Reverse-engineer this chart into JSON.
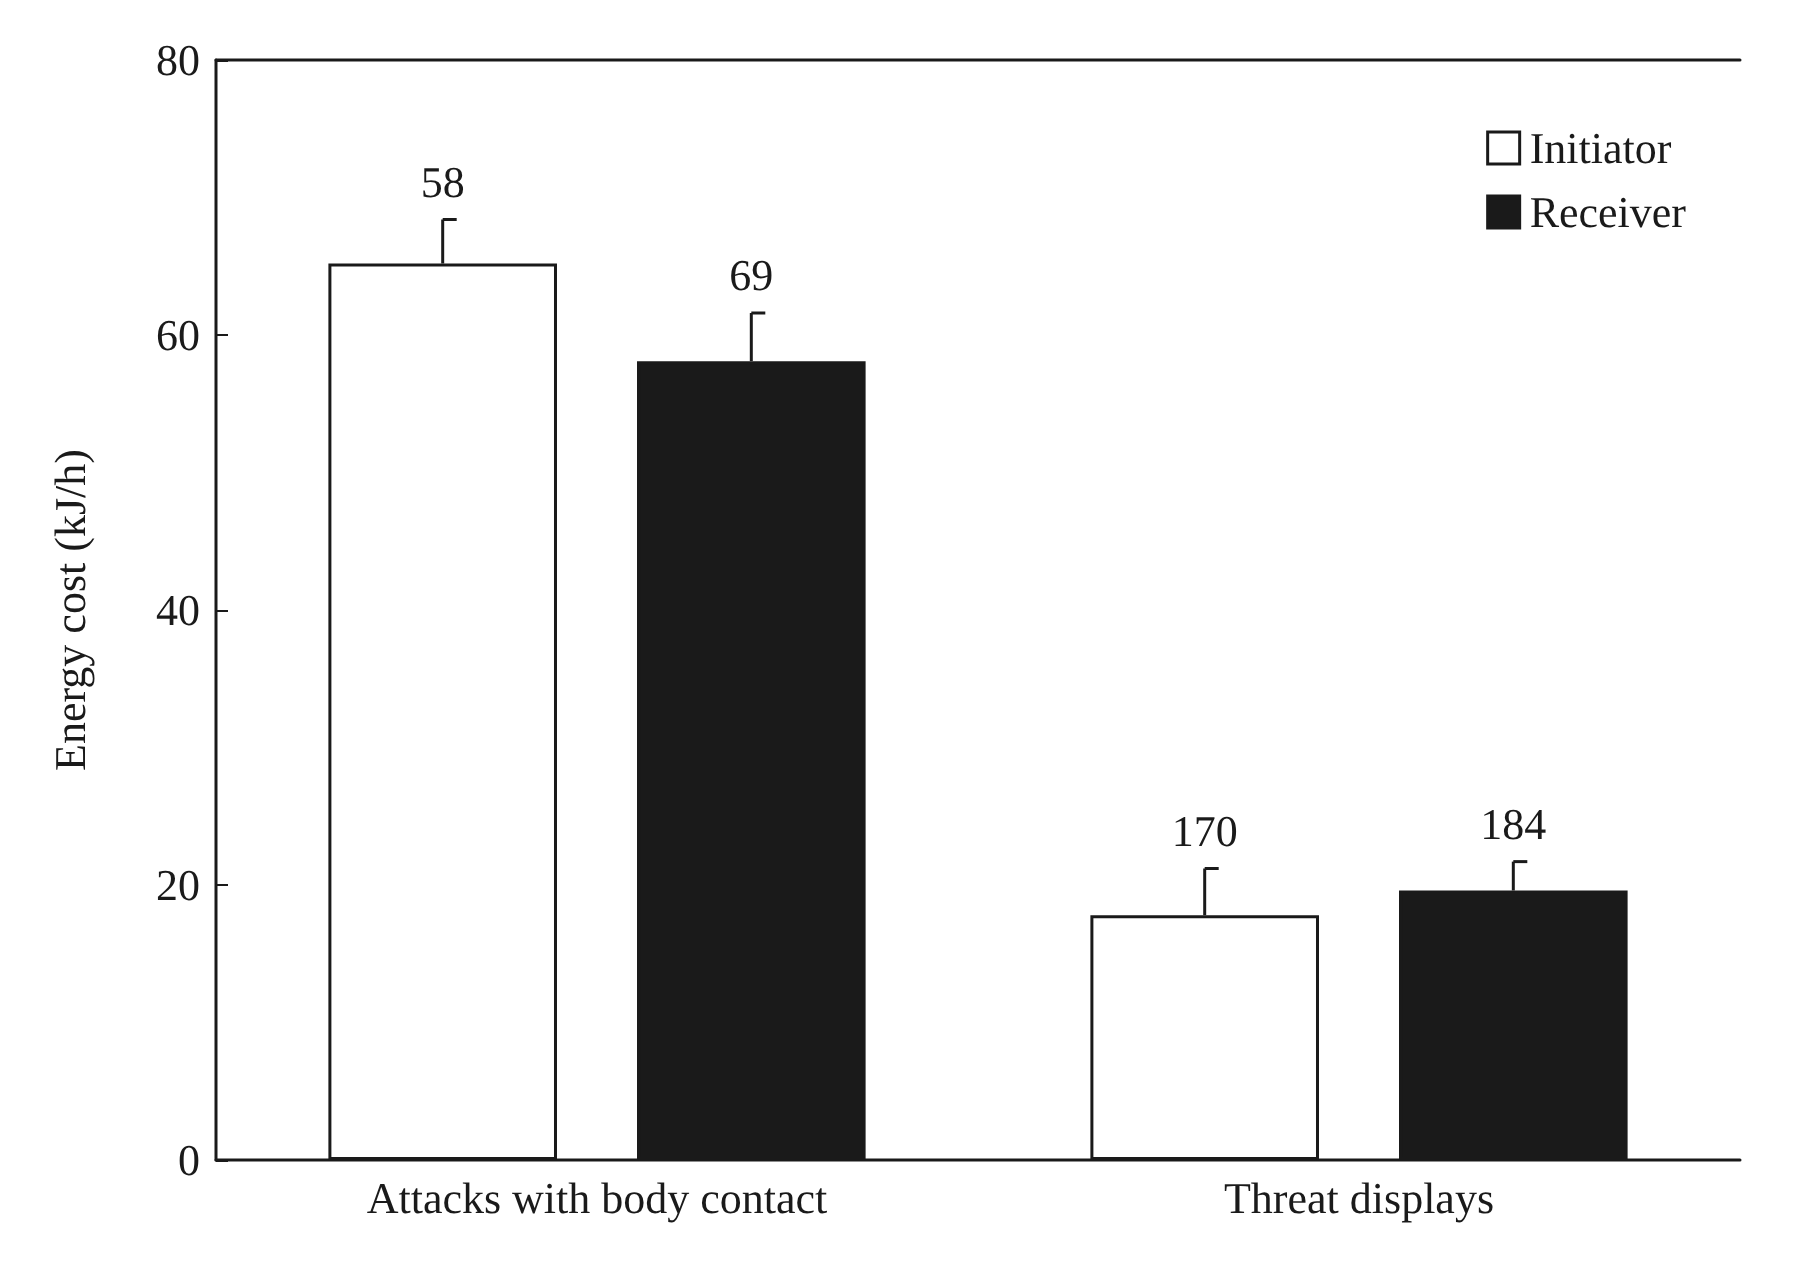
{
  "chart_data": {
    "type": "bar",
    "ylabel": "Energy cost (kJ/h)",
    "categories": [
      "Attacks with body contact",
      "Threat displays"
    ],
    "series": [
      {
        "name": "Initiator",
        "color": "#ffffff",
        "values": [
          65.2,
          17.8
        ],
        "errors": [
          [
            65.2,
            68.4
          ],
          [
            17.8,
            21.2
          ]
        ]
      },
      {
        "name": "Receiver",
        "color": "#1a1a1a",
        "values": [
          58.1,
          19.6
        ],
        "errors": [
          [
            58.1,
            61.6
          ],
          [
            19.6,
            21.7
          ]
        ]
      }
    ],
    "ylim": [
      0,
      80
    ],
    "yticks": [
      0,
      20,
      40,
      60,
      80
    ],
    "grid": false,
    "legend": "top right",
    "annotations": [
      "58",
      "69",
      "170",
      "184"
    ]
  }
}
